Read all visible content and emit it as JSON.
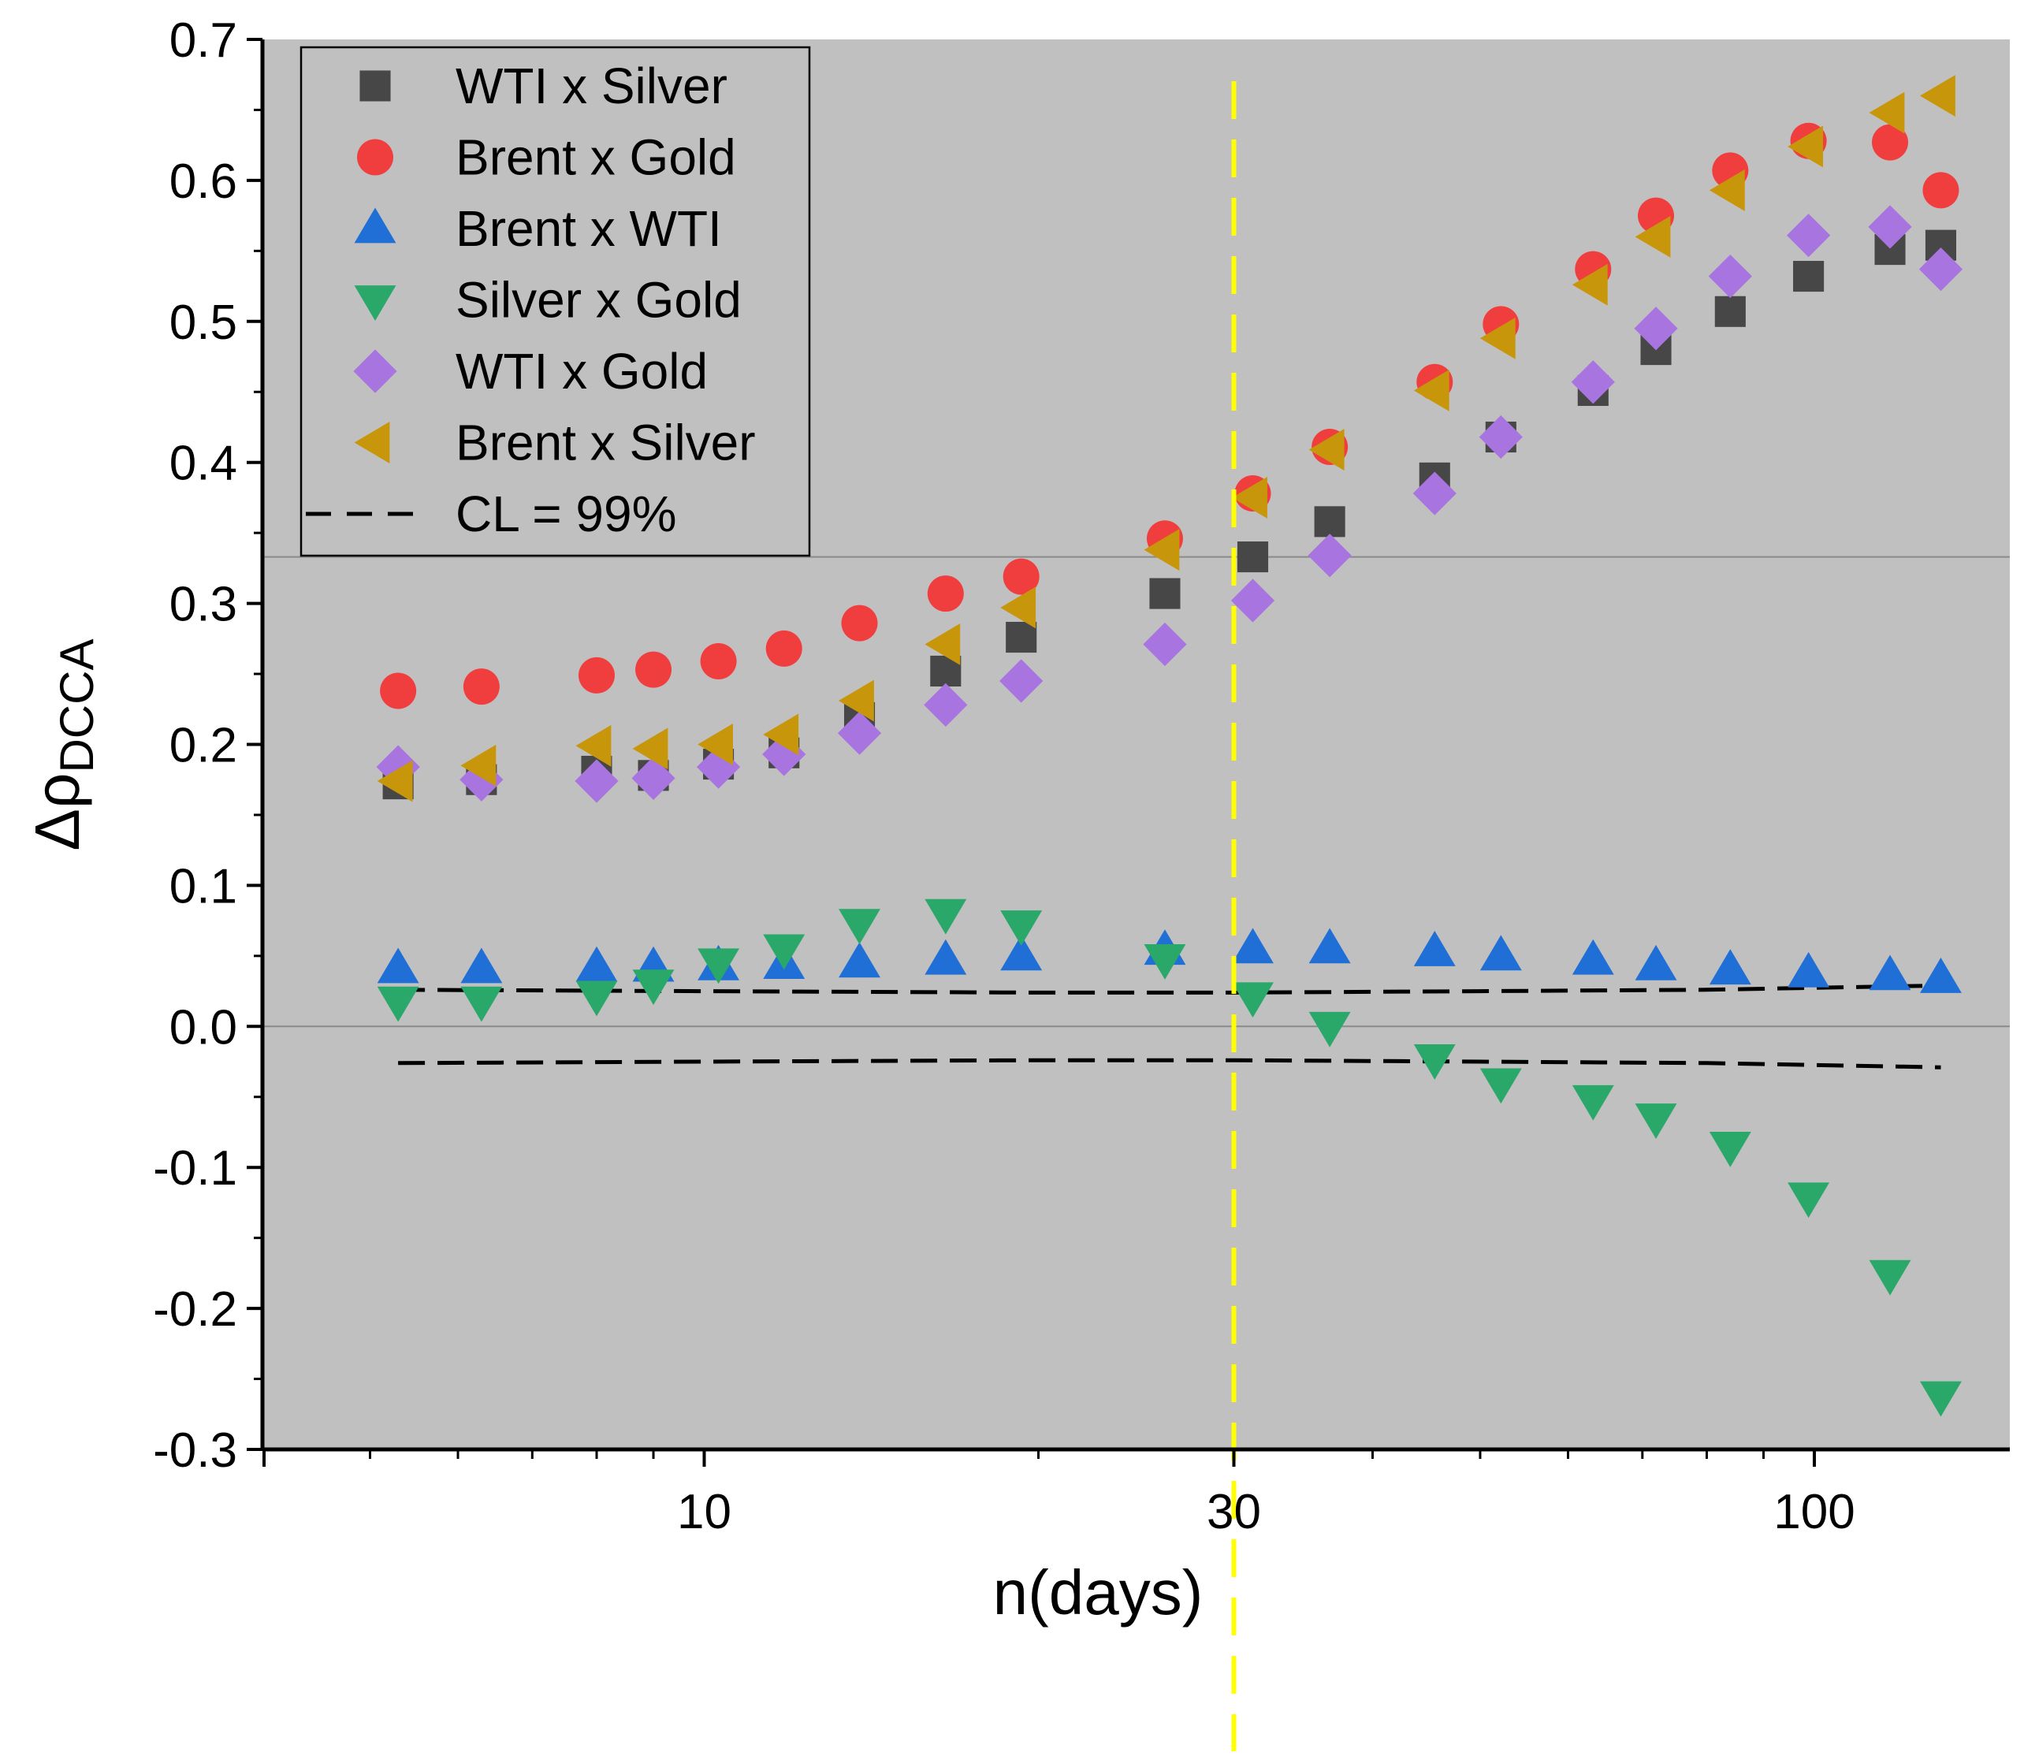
{
  "chart_data": {
    "type": "scatter",
    "xscale": "log",
    "xlabel": "n(days)",
    "ylabel_main": "Δρ",
    "ylabel_sub": "DCCA",
    "xlim": [
      4,
      150
    ],
    "ylim": [
      -0.3,
      0.7
    ],
    "xticks": [
      10,
      30,
      100
    ],
    "xtick_labels": [
      "10",
      "30",
      "100"
    ],
    "yticks": [
      -0.3,
      -0.2,
      -0.1,
      0.0,
      0.1,
      0.2,
      0.3,
      0.4,
      0.5,
      0.6,
      0.7
    ],
    "ytick_labels": [
      "-0.3",
      "-0.2",
      "-0.1",
      "0.0",
      "0.1",
      "0.2",
      "0.3",
      "0.4",
      "0.5",
      "0.6",
      "0.7"
    ],
    "background": "#c0c0c0",
    "reference_lines": {
      "horizontal_y": [
        0.0,
        0.333
      ],
      "vertical_x": 30,
      "vertical_color": "#ffff00"
    },
    "x": [
      5.3,
      6.3,
      8.0,
      9.0,
      10.3,
      11.8,
      13.8,
      16.5,
      19.3,
      26.0,
      31.2,
      36.6,
      45.5,
      52.2,
      63.2,
      72.0,
      84.0,
      98.8,
      117.0,
      130.0
    ],
    "series": [
      {
        "name": "WTI x Silver",
        "marker": "square",
        "color": "#474747",
        "values": [
          0.172,
          0.175,
          0.181,
          0.178,
          0.186,
          0.194,
          0.219,
          0.252,
          0.276,
          0.307,
          0.333,
          0.358,
          0.389,
          0.418,
          0.451,
          0.48,
          0.507,
          0.532,
          0.551,
          0.554
        ],
        "x_override": [
          5.3,
          6.3,
          8.0,
          9.0,
          10.3,
          11.8,
          13.8,
          16.5,
          19.3,
          26.0,
          31.2,
          36.6,
          45.5,
          52.2,
          63.2,
          72.0,
          84.0,
          98.8,
          117.0,
          130.0
        ]
      },
      {
        "name": "Brent x Gold",
        "marker": "circle",
        "color": "#f03e3e",
        "values": [
          0.238,
          0.241,
          0.249,
          0.253,
          0.259,
          0.268,
          0.286,
          0.307,
          0.319,
          0.346,
          0.378,
          0.411,
          0.457,
          0.498,
          0.537,
          0.575,
          0.607,
          0.628,
          0.627,
          0.593
        ]
      },
      {
        "name": "Brent x WTI",
        "marker": "triangle-up",
        "color": "#1f6fd6",
        "values": [
          0.041,
          0.041,
          0.042,
          0.042,
          0.043,
          0.044,
          0.045,
          0.047,
          0.05,
          0.054,
          0.055,
          0.055,
          0.053,
          0.05,
          0.047,
          0.043,
          0.04,
          0.038,
          0.036,
          0.034
        ]
      },
      {
        "name": "Silver x Gold",
        "marker": "triangle-down",
        "color": "#29a86a",
        "values": [
          0.018,
          0.018,
          0.022,
          0.03,
          0.045,
          0.055,
          0.073,
          0.08,
          0.072,
          0.048,
          0.021,
          0.0,
          -0.023,
          -0.04,
          -0.052,
          -0.065,
          -0.085,
          -0.121,
          -0.176,
          -0.262
        ]
      },
      {
        "name": "WTI x Gold",
        "marker": "diamond",
        "color": "#a874e0",
        "values": [
          0.184,
          0.175,
          0.174,
          0.176,
          0.184,
          0.193,
          0.208,
          0.228,
          0.245,
          0.271,
          0.302,
          0.334,
          0.378,
          0.418,
          0.457,
          0.495,
          0.532,
          0.561,
          0.567,
          0.537
        ]
      },
      {
        "name": "Brent x Silver",
        "marker": "triangle-left",
        "color": "#c8960a",
        "values": [
          0.174,
          0.185,
          0.199,
          0.197,
          0.2,
          0.207,
          0.231,
          0.271,
          0.297,
          0.338,
          0.375,
          0.409,
          0.451,
          0.488,
          0.526,
          0.56,
          0.593,
          0.624,
          0.648,
          0.66
        ]
      }
    ],
    "confidence_level": {
      "name": "CL = 99%",
      "x": [
        5.3,
        10.0,
        20.0,
        30.0,
        50.0,
        80.0,
        130.0
      ],
      "upper": [
        0.026,
        0.025,
        0.024,
        0.024,
        0.025,
        0.026,
        0.029
      ],
      "lower": [
        -0.026,
        -0.025,
        -0.024,
        -0.024,
        -0.025,
        -0.026,
        -0.029
      ]
    },
    "legend_location": "top-left"
  }
}
